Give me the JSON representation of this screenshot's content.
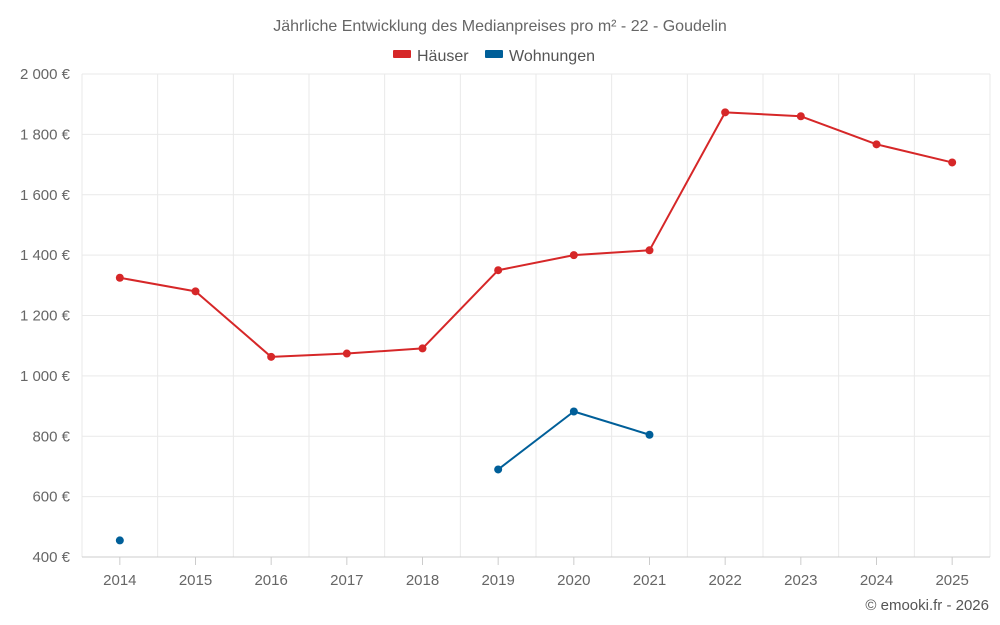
{
  "chart_data": {
    "type": "line",
    "title": "Jährliche Entwicklung des Medianpreises pro m² - 22 - Goudelin",
    "categories": [
      "2014",
      "2015",
      "2016",
      "2017",
      "2018",
      "2019",
      "2020",
      "2021",
      "2022",
      "2023",
      "2024",
      "2025"
    ],
    "series": [
      {
        "name": "Häuser",
        "color": "#d62728",
        "values": [
          1325,
          1280,
          1063,
          1074,
          1091,
          1350,
          1400,
          1416,
          1873,
          1860,
          1767,
          1707
        ]
      },
      {
        "name": "Wohnungen",
        "color": "#005f99",
        "values": [
          455,
          null,
          null,
          null,
          null,
          690,
          882,
          805,
          null,
          null,
          null,
          null
        ]
      }
    ],
    "y_ticks": [
      "400 €",
      "600 €",
      "800 €",
      "1 000 €",
      "1 200 €",
      "1 400 €",
      "1 600 €",
      "1 800 €",
      "2 000 €"
    ],
    "ylim": [
      400,
      2000
    ],
    "ystep": 200,
    "xlabel": "",
    "ylabel": "",
    "legend_position": "top-center",
    "grid": true
  },
  "credit": "© emooki.fr - 2026"
}
